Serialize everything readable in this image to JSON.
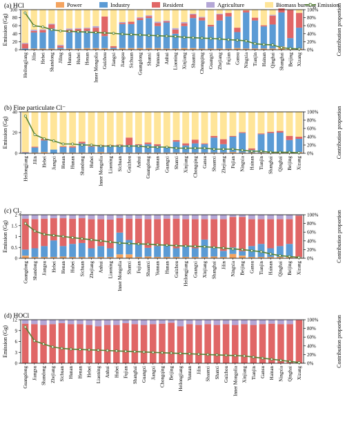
{
  "legend": {
    "items": [
      {
        "name": "Power",
        "color": "#f4a460"
      },
      {
        "name": "Industry",
        "color": "#5b9bd5"
      },
      {
        "name": "Resident",
        "color": "#e06666"
      },
      {
        "name": "Agriculture",
        "color": "#b4a7d6"
      },
      {
        "name": "Biomass burning",
        "color": "#ffe599"
      },
      {
        "name": "Emission",
        "color": "#548235"
      }
    ]
  },
  "chart_data": [
    {
      "type": "bar",
      "title": "(a) HCl",
      "ylabel": "Emission (Gg)",
      "y2label": "Contribution proportion",
      "ylim": [
        0,
        100
      ],
      "yticks": [
        0,
        20,
        40,
        60,
        80,
        100
      ],
      "y2ticks": [
        "0%",
        "20%",
        "40%",
        "60%",
        "80%",
        "100%"
      ],
      "categories": [
        "Heilongjiang",
        "Jilin",
        "Hebei",
        "Shandong",
        "Jiling",
        "Hunan",
        "Hubei",
        "Henan",
        "Inner Mongolia",
        "Guizhou",
        "Jiangxi",
        "Jiangsu",
        "Sichuan",
        "Guangdong",
        "Shanxi",
        "Yunnan",
        "Anhui",
        "Liaoning",
        "Xinjiang",
        "Shaanxi",
        "Chongqing",
        "Guangxi",
        "Zhejiang",
        "Fujian",
        "Gansu",
        "Ningxia",
        "Tianjin",
        "Hainan",
        "Qinghai",
        "Shanghai",
        "Beijing",
        "Xizang"
      ],
      "emission": [
        92,
        60,
        57,
        50,
        47,
        46,
        45,
        44,
        43,
        42,
        41,
        39,
        38,
        37,
        36,
        35,
        34,
        33,
        31,
        30,
        29,
        28,
        27,
        25,
        24,
        22,
        15,
        13,
        12,
        5,
        3,
        2
      ],
      "series": [
        {
          "name": "Power",
          "values": [
            0,
            3,
            3,
            3,
            2,
            3,
            3,
            4,
            4,
            4,
            2,
            4,
            4,
            4,
            4,
            4,
            3,
            3,
            4,
            4,
            3,
            3,
            3,
            3,
            4,
            3,
            3,
            3,
            3,
            8,
            4,
            3
          ]
        },
        {
          "name": "Industry",
          "values": [
            3,
            40,
            40,
            50,
            3,
            40,
            42,
            43,
            40,
            30,
            3,
            60,
            60,
            70,
            75,
            55,
            65,
            37,
            55,
            75,
            70,
            55,
            70,
            80,
            40,
            90,
            70,
            55,
            60,
            85,
            25,
            52
          ]
        },
        {
          "name": "Resident",
          "values": [
            12,
            4,
            6,
            10,
            5,
            7,
            7,
            6,
            11,
            49,
            4,
            3,
            6,
            5,
            5,
            8,
            3,
            10,
            7,
            9,
            7,
            4,
            15,
            9,
            11,
            5,
            7,
            3,
            22,
            10,
            70,
            37
          ]
        },
        {
          "name": "Agriculture",
          "values": [
            2,
            3,
            2,
            2,
            2,
            3,
            2,
            2,
            4,
            0,
            0,
            2,
            0,
            2,
            2,
            3,
            2,
            4,
            3,
            2,
            2,
            0,
            2,
            0,
            0,
            0,
            0,
            0,
            2,
            0,
            0,
            0
          ]
        },
        {
          "name": "Biomass burning",
          "values": [
            83,
            50,
            49,
            35,
            88,
            47,
            46,
            45,
            41,
            17,
            91,
            31,
            30,
            19,
            14,
            30,
            27,
            46,
            31,
            10,
            18,
            38,
            10,
            8,
            45,
            2,
            20,
            39,
            13,
            0,
            1,
            8
          ]
        }
      ]
    },
    {
      "type": "bar",
      "title": "(b) Fine particulate Cl⁻",
      "ylabel": "Emission (Gg)",
      "y2label": "Contribution proportion",
      "ylim": [
        0,
        40
      ],
      "yticks": [
        0,
        20,
        40
      ],
      "y2ticks": [
        "0%",
        "20%",
        "40%",
        "60%",
        "80%",
        "100%"
      ],
      "categories": [
        "Heilongjiang",
        "Jilin",
        "Hebei",
        "Jiangxi",
        "Henan",
        "Hunan",
        "Shandong",
        "Hubei",
        "Inner Mongolia",
        "Liaoning",
        "Sichuan",
        "Guizhou",
        "Anhui",
        "Guangdong",
        "Yunnan",
        "Guangxi",
        "Shanxi",
        "Xinjiang",
        "Chongqing",
        "Gansu",
        "Shaanxi",
        "Zhejiang",
        "Fujian",
        "Ningxia",
        "Hainan",
        "Tianjin",
        "Shanghai",
        "Qinghai",
        "Beijing",
        "Xizang"
      ],
      "emission": [
        36,
        18,
        14,
        12,
        9,
        9,
        8,
        8,
        7,
        7,
        7,
        7,
        7,
        6,
        6,
        6,
        5,
        5,
        5,
        5,
        4,
        4,
        4,
        3,
        2,
        2,
        1,
        1,
        1,
        0.5
      ],
      "series": [
        {
          "name": "Power",
          "values": [
            0,
            2,
            3,
            1,
            2,
            2,
            2,
            2,
            3,
            2,
            2,
            2,
            2,
            2,
            2,
            2,
            2,
            2,
            2,
            2,
            2,
            2,
            3,
            2,
            2,
            2,
            3,
            2,
            2,
            3
          ]
        },
        {
          "name": "Industry",
          "values": [
            2,
            12,
            28,
            8,
            13,
            12,
            22,
            14,
            13,
            16,
            17,
            18,
            18,
            20,
            16,
            12,
            26,
            17,
            22,
            20,
            36,
            20,
            37,
            47,
            6,
            44,
            46,
            48,
            30,
            32
          ]
        },
        {
          "name": "Resident",
          "values": [
            1,
            2,
            4,
            0,
            2,
            3,
            4,
            2,
            4,
            2,
            2,
            18,
            2,
            4,
            4,
            2,
            4,
            5,
            9,
            2,
            4,
            12,
            2,
            2,
            4,
            2,
            3,
            4,
            10,
            5
          ]
        },
        {
          "name": "Agriculture",
          "values": [
            0,
            0,
            0,
            0,
            0,
            0,
            0,
            0,
            0,
            0,
            0,
            0,
            0,
            0,
            0,
            0,
            0,
            0,
            0,
            0,
            0,
            0,
            0,
            0,
            0,
            0,
            0,
            0,
            0,
            0
          ]
        },
        {
          "name": "Biomass burning",
          "values": [
            97,
            84,
            65,
            91,
            83,
            83,
            72,
            82,
            80,
            80,
            79,
            62,
            78,
            74,
            78,
            84,
            68,
            76,
            67,
            76,
            58,
            66,
            58,
            49,
            88,
            52,
            48,
            46,
            58,
            60
          ]
        }
      ]
    },
    {
      "type": "bar",
      "title": "(c) Cl₂",
      "ylabel": "Emission (Gg)",
      "y2label": "Contribution proportion",
      "ylim": [
        0,
        2
      ],
      "yticks": [
        0,
        0.5,
        1,
        1.5,
        2
      ],
      "y2ticks": [
        "0%",
        "20%",
        "40%",
        "60%",
        "80%",
        "100%"
      ],
      "categories": [
        "Guangdong",
        "Shandong",
        "Jiangsu",
        "Hebei",
        "Henan",
        "Hubei",
        "Sichuan",
        "Zhejiang",
        "Anhui",
        "Liaoning",
        "Inner Mongolia",
        "Shanxi",
        "Fujian",
        "Shaanxi",
        "Yunnan",
        "Hunan",
        "Guizhou",
        "Heilongjiang",
        "Guangxi",
        "Xinjiang",
        "Shanghai",
        "Jilin",
        "Ningxia",
        "Beijing",
        "Gansu",
        "Tianjin",
        "Hainan",
        "Qinghai",
        "Beijing",
        "Xizang"
      ],
      "emission": [
        1.6,
        1.25,
        1.1,
        1.05,
        1.0,
        0.95,
        0.9,
        0.85,
        0.8,
        0.75,
        0.7,
        0.68,
        0.66,
        0.65,
        0.62,
        0.6,
        0.58,
        0.56,
        0.55,
        0.53,
        0.5,
        0.47,
        0.43,
        0.4,
        0.35,
        0.3,
        0.2,
        0.12,
        0.08,
        0.04
      ],
      "series": [
        {
          "name": "Power",
          "values": [
            6,
            3,
            3,
            3,
            4,
            3,
            3,
            3,
            3,
            3,
            9,
            9,
            3,
            4,
            3,
            3,
            3,
            3,
            3,
            3,
            4,
            3,
            10,
            6,
            3,
            3,
            3,
            3,
            3,
            2
          ]
        },
        {
          "name": "Industry",
          "values": [
            14,
            20,
            25,
            38,
            24,
            30,
            32,
            20,
            25,
            20,
            50,
            33,
            30,
            20,
            25,
            28,
            20,
            25,
            20,
            40,
            20,
            14,
            15,
            10,
            25,
            30,
            20,
            25,
            30,
            1
          ]
        },
        {
          "name": "Resident",
          "values": [
            71,
            67,
            63,
            51,
            64,
            58,
            57,
            67,
            62,
            66,
            33,
            49,
            58,
            66,
            62,
            60,
            68,
            62,
            67,
            47,
            66,
            73,
            70,
            79,
            62,
            57,
            67,
            62,
            57,
            95
          ]
        },
        {
          "name": "Agriculture",
          "values": [
            9,
            10,
            9,
            8,
            8,
            9,
            8,
            10,
            10,
            11,
            8,
            9,
            9,
            10,
            10,
            9,
            9,
            10,
            10,
            10,
            10,
            10,
            5,
            5,
            10,
            10,
            10,
            10,
            10,
            2
          ]
        },
        {
          "name": "Biomass burning",
          "values": [
            0,
            0,
            0,
            0,
            0,
            0,
            0,
            0,
            0,
            0,
            0,
            0,
            0,
            0,
            0,
            0,
            0,
            0,
            0,
            0,
            0,
            0,
            0,
            0,
            0,
            0,
            0,
            0,
            0,
            0
          ]
        }
      ]
    },
    {
      "type": "bar",
      "title": "(d) HOCl",
      "ylabel": "Emission (Gg)",
      "y2label": "Contribution proportion",
      "ylim": [
        0,
        12
      ],
      "yticks": [
        0,
        3,
        6,
        9,
        12
      ],
      "y2ticks": [
        "0%",
        "20%",
        "40%",
        "60%",
        "80%",
        "100%"
      ],
      "categories": [
        "Guangdong",
        "Jiangsu",
        "Shandong",
        "Zhejiang",
        "Sichuan",
        "Hunan",
        "Henan",
        "Hebei",
        "Liaoning",
        "Anhui",
        "Hubei",
        "Fujian",
        "Shanghai",
        "Guangxi",
        "Jiangxi",
        "Chongqing",
        "Beijing",
        "Heilongjiang",
        "Yunnan",
        "Jilin",
        "Shaanxi",
        "Shanxi",
        "Guizhou",
        "Inner Mongolia",
        "Xinjiang",
        "Tianjin",
        "Gansu",
        "Hainan",
        "Ningxia",
        "Qinghai",
        "Xizang"
      ],
      "emission": [
        10,
        6.2,
        5.3,
        4.5,
        4.1,
        3.9,
        3.8,
        3.7,
        3.6,
        3.5,
        3.4,
        3.3,
        3.2,
        3.1,
        3.0,
        2.9,
        2.8,
        2.7,
        2.6,
        2.5,
        2.4,
        2.3,
        2.2,
        2.1,
        2.0,
        1.7,
        1.4,
        1.1,
        0.8,
        0.5,
        0.2
      ],
      "series": [
        {
          "name": "Power",
          "values": [
            0,
            0,
            0,
            0,
            0,
            0,
            0,
            0,
            0,
            0,
            0,
            0,
            0,
            0,
            0,
            0,
            0,
            0,
            0,
            0,
            0,
            0,
            0,
            0,
            0,
            0,
            0,
            0,
            0,
            0,
            0
          ]
        },
        {
          "name": "Industry",
          "values": [
            0,
            0,
            0,
            0,
            0,
            0,
            0,
            0,
            0,
            0,
            0,
            0,
            0,
            0,
            0,
            0,
            0,
            0,
            0,
            0,
            0,
            0,
            0,
            0,
            0,
            0,
            0,
            0,
            0,
            0,
            0
          ]
        },
        {
          "name": "Resident",
          "values": [
            91,
            90,
            88,
            90,
            92,
            90,
            90,
            88,
            85,
            88,
            88,
            92,
            90,
            88,
            90,
            91,
            93,
            85,
            90,
            88,
            90,
            88,
            90,
            88,
            90,
            88,
            90,
            91,
            90,
            90,
            99
          ]
        },
        {
          "name": "Agriculture",
          "values": [
            9,
            10,
            12,
            10,
            8,
            10,
            10,
            12,
            15,
            12,
            12,
            8,
            10,
            12,
            10,
            9,
            7,
            15,
            10,
            12,
            10,
            12,
            10,
            12,
            10,
            12,
            10,
            9,
            10,
            10,
            1
          ]
        },
        {
          "name": "Biomass burning",
          "values": [
            0,
            0,
            0,
            0,
            0,
            0,
            0,
            0,
            0,
            0,
            0,
            0,
            0,
            0,
            0,
            0,
            0,
            0,
            0,
            0,
            0,
            0,
            0,
            0,
            0,
            0,
            0,
            0,
            0,
            0,
            0
          ]
        }
      ]
    }
  ]
}
